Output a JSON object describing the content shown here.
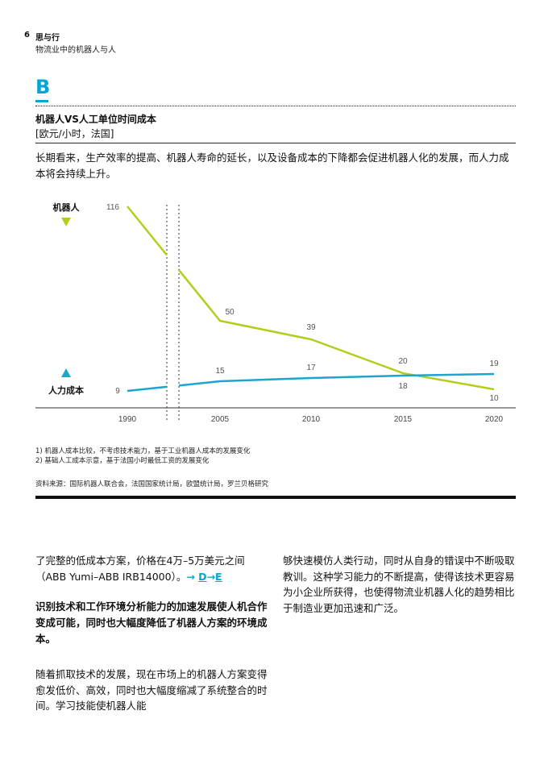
{
  "header": {
    "page_number": "6",
    "section_title": "思与行",
    "section_subtitle": "物流业中的机器人与人"
  },
  "figure": {
    "letter": "B",
    "title": "机器人VS人工单位时间成本",
    "unit": "[欧元/小时，法国]",
    "intro": "长期看来，生产效率的提高、机器人寿命的延长，以及设备成本的下降都会促进机器人化的发展，而人力成本将会持续上升。",
    "notes": [
      "1) 机器人成本比较，不考虑技术能力，基于工业机器人成本的发展变化",
      "2) 基础人工成本示意，基于法国小时最低工资的发展变化"
    ],
    "source": "资料来源：国际机器人联合会，法国国家统计局，欧盟统计局，罗兰贝格研究"
  },
  "chart_data": {
    "type": "line",
    "x_categories": [
      "1990",
      "2005",
      "2010",
      "2015",
      "2020"
    ],
    "axis_break": "between 1990 and 2005",
    "series": [
      {
        "name": "机器人",
        "color": "#b5cc1a",
        "marker": "down-triangle",
        "points": [
          {
            "x": "1990",
            "y": 116,
            "label": "116"
          },
          {
            "x": "2005",
            "y": 50,
            "label": "50"
          },
          {
            "x": "2010",
            "y": 39,
            "label": "39"
          },
          {
            "x": "2015",
            "y": 20,
            "label": "20"
          },
          {
            "x": "2020",
            "y": 10,
            "label": "10"
          }
        ]
      },
      {
        "name": "人力成本",
        "color": "#1ba5cf",
        "marker": "up-triangle",
        "points": [
          {
            "x": "1990",
            "y": 9,
            "label": "9"
          },
          {
            "x": "2005",
            "y": 15,
            "label": "15"
          },
          {
            "x": "2010",
            "y": 17,
            "label": "17"
          },
          {
            "x": "2015",
            "y": 18,
            "label": "18"
          },
          {
            "x": "2020",
            "y": 19,
            "label": "19"
          }
        ]
      }
    ],
    "grid": false,
    "legend_placement": "left"
  },
  "body": {
    "left_para1_a": "了完整的低成本方案，价格在4万–5万美元之间（ABB Yumi–ABB IRB14000）。",
    "left_para1_link_arrow1": "→ ",
    "left_para1_link_D": "D",
    "left_para1_link_arrow2": "→",
    "left_para1_link_E": "E",
    "left_highlight": "识别技术和工作环境分析能力的加速发展使人机合作变成可能，同时也大幅度降低了机器人方案的环境成本。",
    "left_para3": "随着抓取技术的发展，现在市场上的机器人方案变得愈发低价、高效，同时也大幅度缩减了系统整合的时间。学习技能使机器人能",
    "right_para": "够快速模仿人类行动，同时从自身的错误中不断吸取教训。这种学习能力的不断提高，使得该技术更容易为小企业所获得，也使得物流业机器人化的趋势相比于制造业更加迅速和广泛。"
  },
  "colors": {
    "accent": "#00a7d0",
    "robot_line": "#b5cc1a",
    "labor_line": "#1ba5cf"
  }
}
